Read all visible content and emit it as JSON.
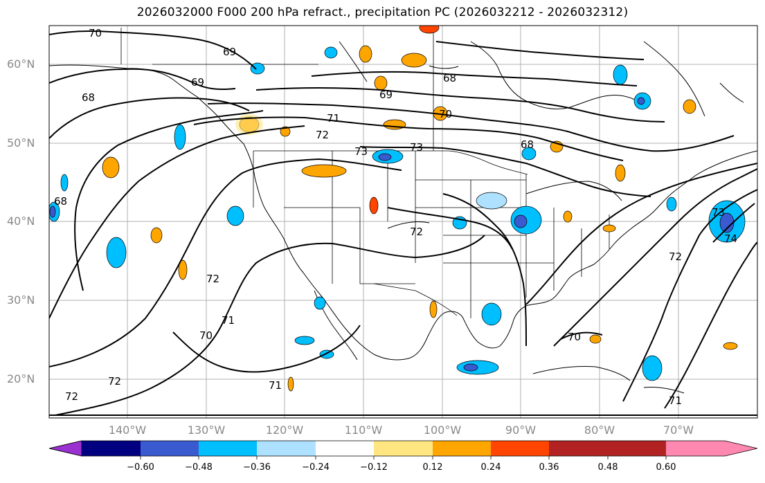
{
  "title": "2026032000 F000 200 hPa refract., precipitation PC (2026032212 - 2026032312)",
  "lat_labels": [
    "60°N",
    "50°N",
    "40°N",
    "30°N",
    "20°N"
  ],
  "lon_labels": [
    "140°W",
    "130°W",
    "120°W",
    "110°W",
    "100°W",
    "90°W",
    "80°W",
    "70°W"
  ],
  "colorbar": {
    "colors": [
      "#9b30d0",
      "#000080",
      "#3a5bd0",
      "#00bfff",
      "#aee0ff",
      "#ffffff",
      "#ffe680",
      "#ffa500",
      "#ff4500",
      "#b22222",
      "#ff88b0"
    ],
    "ticks": [
      "−0.60",
      "−0.48",
      "−0.36",
      "−0.24",
      "−0.12",
      "0.12",
      "0.24",
      "0.36",
      "0.48",
      "0.60"
    ]
  },
  "contour_labels": [
    "70",
    "69",
    "69",
    "68",
    "68",
    "69",
    "68",
    "70",
    "71",
    "72",
    "73",
    "73",
    "68",
    "72",
    "73",
    "74",
    "72",
    "72",
    "71",
    "70",
    "72",
    "72",
    "71",
    "70",
    "71"
  ]
}
